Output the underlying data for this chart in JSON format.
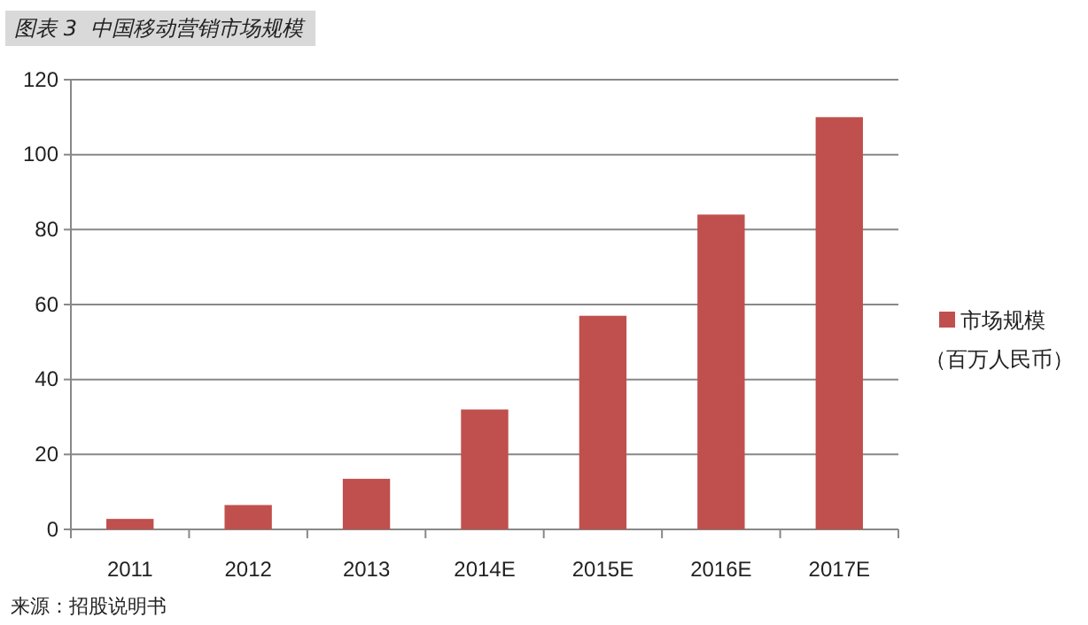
{
  "chart_data": {
    "type": "bar",
    "title": "图表 3  中国移动营销市场规模",
    "categories": [
      "2011",
      "2012",
      "2013",
      "2014E",
      "2015E",
      "2016E",
      "2017E"
    ],
    "series": [
      {
        "name": "市场规模（百万人民币）",
        "color": "#c0504d",
        "values": [
          2.8,
          6.5,
          13.5,
          32,
          57,
          84,
          110
        ]
      }
    ],
    "ylim": [
      0,
      120
    ],
    "yticks": [
      0,
      20,
      40,
      60,
      80,
      100,
      120
    ],
    "grid": "y",
    "legend": "right",
    "annotations": [
      "来源：招股说明书"
    ]
  }
}
